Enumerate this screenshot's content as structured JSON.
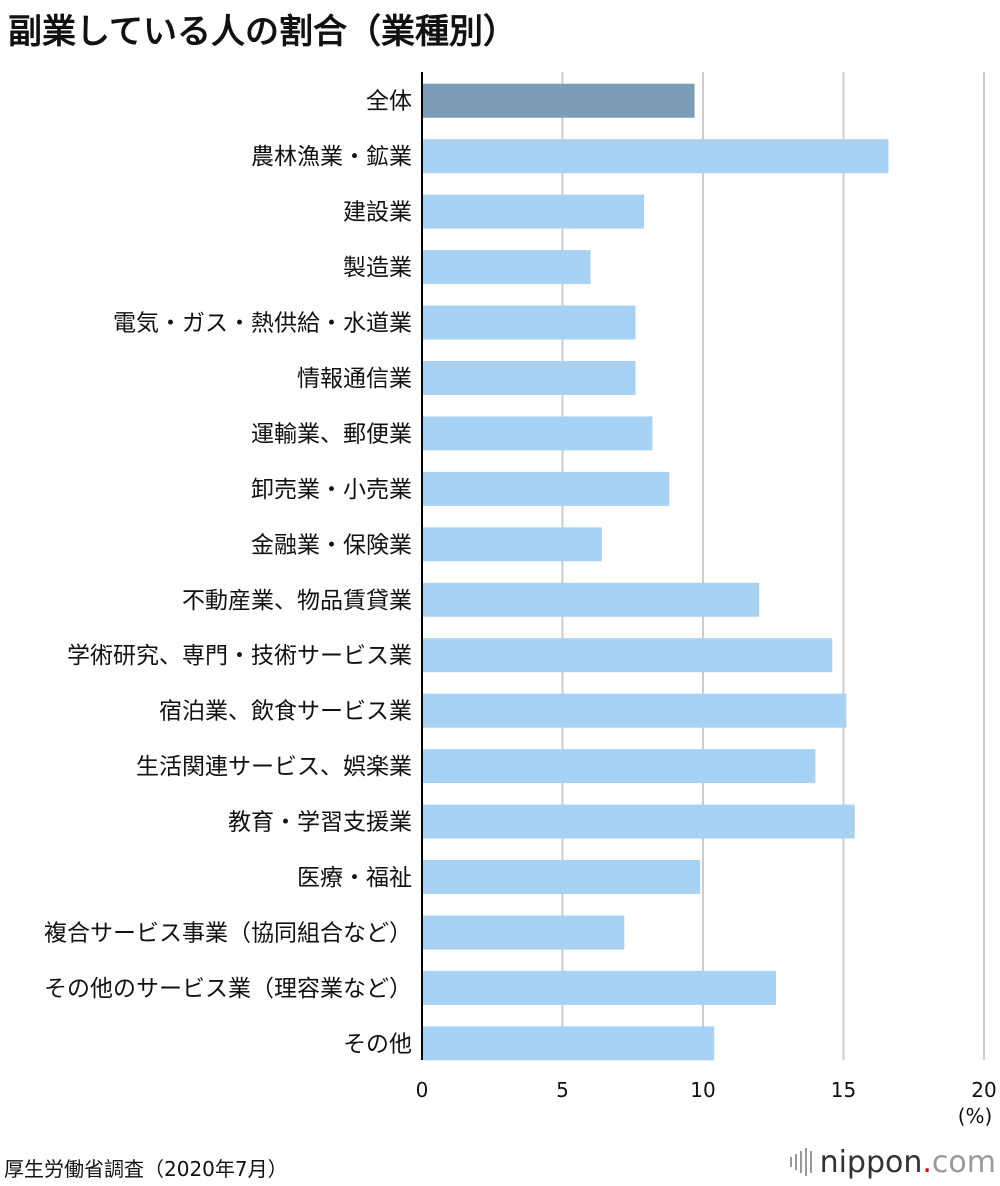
{
  "title": "副業している人の割合（業種別）",
  "source": "厚生労働省調査（2020年7月）",
  "logo": {
    "name": "nippon",
    "dot": ".",
    "tld": "com"
  },
  "colors": {
    "highlight": "#7c9db8",
    "bar": "#a7d2f3",
    "grid": "#cccccc",
    "axis": "#000000"
  },
  "chart_data": {
    "type": "bar",
    "orientation": "horizontal",
    "title": "副業している人の割合（業種別）",
    "xlabel": "(%)",
    "ylabel": "",
    "xlim": [
      0,
      20
    ],
    "ticks": [
      "0",
      "5",
      "10",
      "15",
      "20"
    ],
    "tick_values": [
      0,
      5,
      10,
      15,
      20
    ],
    "unit_label": "(%)",
    "grid": true,
    "categories": [
      "全体",
      "農林漁業・鉱業",
      "建設業",
      "製造業",
      "電気・ガス・熱供給・水道業",
      "情報通信業",
      "運輸業、郵便業",
      "卸売業・小売業",
      "金融業・保険業",
      "不動産業、物品賃貸業",
      "学術研究、専門・技術サービス業",
      "宿泊業、飲食サービス業",
      "生活関連サービス、娯楽業",
      "教育・学習支援業",
      "医療・福祉",
      "複合サービス事業（協同組合など）",
      "その他のサービス業（理容業など）",
      "その他"
    ],
    "values": [
      9.7,
      16.6,
      7.9,
      6.0,
      7.6,
      7.6,
      8.2,
      8.8,
      6.4,
      12.0,
      14.6,
      15.1,
      14.0,
      15.4,
      9.9,
      7.2,
      12.6,
      10.4
    ],
    "highlight_index": 0
  }
}
